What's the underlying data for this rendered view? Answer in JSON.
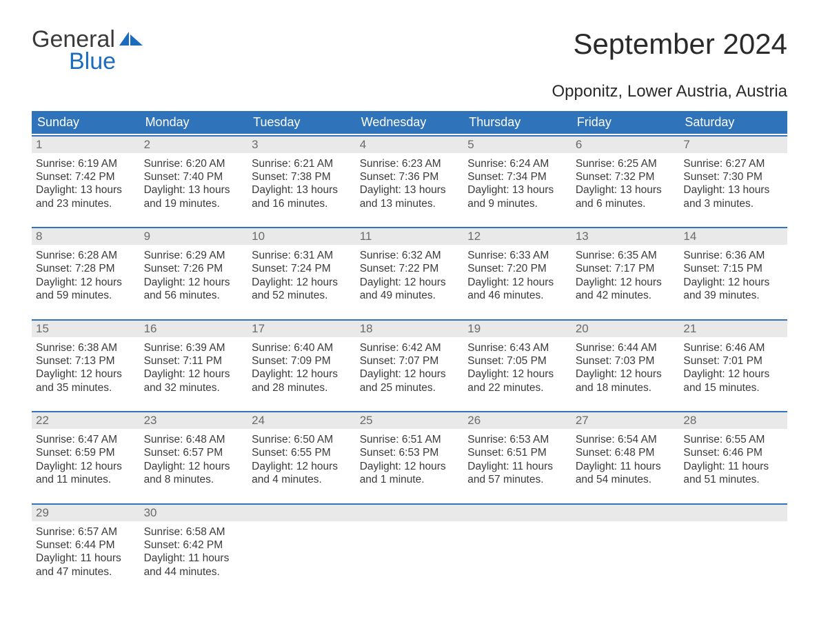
{
  "logo": {
    "text1": "General",
    "text2": "Blue"
  },
  "title": "September 2024",
  "location": "Opponitz, Lower Austria, Austria",
  "colors": {
    "header_bg": "#2f73ba",
    "header_text": "#ffffff",
    "daynum_bg": "#e9e9e9",
    "daynum_text": "#6a6a6a",
    "body_text": "#3a3a3a",
    "border": "#2f73ba",
    "logo_blue": "#1d6bbf"
  },
  "day_names": [
    "Sunday",
    "Monday",
    "Tuesday",
    "Wednesday",
    "Thursday",
    "Friday",
    "Saturday"
  ],
  "weeks": [
    [
      {
        "n": "1",
        "sunrise": "Sunrise: 6:19 AM",
        "sunset": "Sunset: 7:42 PM",
        "daylight": "Daylight: 13 hours and 23 minutes."
      },
      {
        "n": "2",
        "sunrise": "Sunrise: 6:20 AM",
        "sunset": "Sunset: 7:40 PM",
        "daylight": "Daylight: 13 hours and 19 minutes."
      },
      {
        "n": "3",
        "sunrise": "Sunrise: 6:21 AM",
        "sunset": "Sunset: 7:38 PM",
        "daylight": "Daylight: 13 hours and 16 minutes."
      },
      {
        "n": "4",
        "sunrise": "Sunrise: 6:23 AM",
        "sunset": "Sunset: 7:36 PM",
        "daylight": "Daylight: 13 hours and 13 minutes."
      },
      {
        "n": "5",
        "sunrise": "Sunrise: 6:24 AM",
        "sunset": "Sunset: 7:34 PM",
        "daylight": "Daylight: 13 hours and 9 minutes."
      },
      {
        "n": "6",
        "sunrise": "Sunrise: 6:25 AM",
        "sunset": "Sunset: 7:32 PM",
        "daylight": "Daylight: 13 hours and 6 minutes."
      },
      {
        "n": "7",
        "sunrise": "Sunrise: 6:27 AM",
        "sunset": "Sunset: 7:30 PM",
        "daylight": "Daylight: 13 hours and 3 minutes."
      }
    ],
    [
      {
        "n": "8",
        "sunrise": "Sunrise: 6:28 AM",
        "sunset": "Sunset: 7:28 PM",
        "daylight": "Daylight: 12 hours and 59 minutes."
      },
      {
        "n": "9",
        "sunrise": "Sunrise: 6:29 AM",
        "sunset": "Sunset: 7:26 PM",
        "daylight": "Daylight: 12 hours and 56 minutes."
      },
      {
        "n": "10",
        "sunrise": "Sunrise: 6:31 AM",
        "sunset": "Sunset: 7:24 PM",
        "daylight": "Daylight: 12 hours and 52 minutes."
      },
      {
        "n": "11",
        "sunrise": "Sunrise: 6:32 AM",
        "sunset": "Sunset: 7:22 PM",
        "daylight": "Daylight: 12 hours and 49 minutes."
      },
      {
        "n": "12",
        "sunrise": "Sunrise: 6:33 AM",
        "sunset": "Sunset: 7:20 PM",
        "daylight": "Daylight: 12 hours and 46 minutes."
      },
      {
        "n": "13",
        "sunrise": "Sunrise: 6:35 AM",
        "sunset": "Sunset: 7:17 PM",
        "daylight": "Daylight: 12 hours and 42 minutes."
      },
      {
        "n": "14",
        "sunrise": "Sunrise: 6:36 AM",
        "sunset": "Sunset: 7:15 PM",
        "daylight": "Daylight: 12 hours and 39 minutes."
      }
    ],
    [
      {
        "n": "15",
        "sunrise": "Sunrise: 6:38 AM",
        "sunset": "Sunset: 7:13 PM",
        "daylight": "Daylight: 12 hours and 35 minutes."
      },
      {
        "n": "16",
        "sunrise": "Sunrise: 6:39 AM",
        "sunset": "Sunset: 7:11 PM",
        "daylight": "Daylight: 12 hours and 32 minutes."
      },
      {
        "n": "17",
        "sunrise": "Sunrise: 6:40 AM",
        "sunset": "Sunset: 7:09 PM",
        "daylight": "Daylight: 12 hours and 28 minutes."
      },
      {
        "n": "18",
        "sunrise": "Sunrise: 6:42 AM",
        "sunset": "Sunset: 7:07 PM",
        "daylight": "Daylight: 12 hours and 25 minutes."
      },
      {
        "n": "19",
        "sunrise": "Sunrise: 6:43 AM",
        "sunset": "Sunset: 7:05 PM",
        "daylight": "Daylight: 12 hours and 22 minutes."
      },
      {
        "n": "20",
        "sunrise": "Sunrise: 6:44 AM",
        "sunset": "Sunset: 7:03 PM",
        "daylight": "Daylight: 12 hours and 18 minutes."
      },
      {
        "n": "21",
        "sunrise": "Sunrise: 6:46 AM",
        "sunset": "Sunset: 7:01 PM",
        "daylight": "Daylight: 12 hours and 15 minutes."
      }
    ],
    [
      {
        "n": "22",
        "sunrise": "Sunrise: 6:47 AM",
        "sunset": "Sunset: 6:59 PM",
        "daylight": "Daylight: 12 hours and 11 minutes."
      },
      {
        "n": "23",
        "sunrise": "Sunrise: 6:48 AM",
        "sunset": "Sunset: 6:57 PM",
        "daylight": "Daylight: 12 hours and 8 minutes."
      },
      {
        "n": "24",
        "sunrise": "Sunrise: 6:50 AM",
        "sunset": "Sunset: 6:55 PM",
        "daylight": "Daylight: 12 hours and 4 minutes."
      },
      {
        "n": "25",
        "sunrise": "Sunrise: 6:51 AM",
        "sunset": "Sunset: 6:53 PM",
        "daylight": "Daylight: 12 hours and 1 minute."
      },
      {
        "n": "26",
        "sunrise": "Sunrise: 6:53 AM",
        "sunset": "Sunset: 6:51 PM",
        "daylight": "Daylight: 11 hours and 57 minutes."
      },
      {
        "n": "27",
        "sunrise": "Sunrise: 6:54 AM",
        "sunset": "Sunset: 6:48 PM",
        "daylight": "Daylight: 11 hours and 54 minutes."
      },
      {
        "n": "28",
        "sunrise": "Sunrise: 6:55 AM",
        "sunset": "Sunset: 6:46 PM",
        "daylight": "Daylight: 11 hours and 51 minutes."
      }
    ],
    [
      {
        "n": "29",
        "sunrise": "Sunrise: 6:57 AM",
        "sunset": "Sunset: 6:44 PM",
        "daylight": "Daylight: 11 hours and 47 minutes."
      },
      {
        "n": "30",
        "sunrise": "Sunrise: 6:58 AM",
        "sunset": "Sunset: 6:42 PM",
        "daylight": "Daylight: 11 hours and 44 minutes."
      },
      {
        "n": "",
        "sunrise": "",
        "sunset": "",
        "daylight": ""
      },
      {
        "n": "",
        "sunrise": "",
        "sunset": "",
        "daylight": ""
      },
      {
        "n": "",
        "sunrise": "",
        "sunset": "",
        "daylight": ""
      },
      {
        "n": "",
        "sunrise": "",
        "sunset": "",
        "daylight": ""
      },
      {
        "n": "",
        "sunrise": "",
        "sunset": "",
        "daylight": ""
      }
    ]
  ]
}
